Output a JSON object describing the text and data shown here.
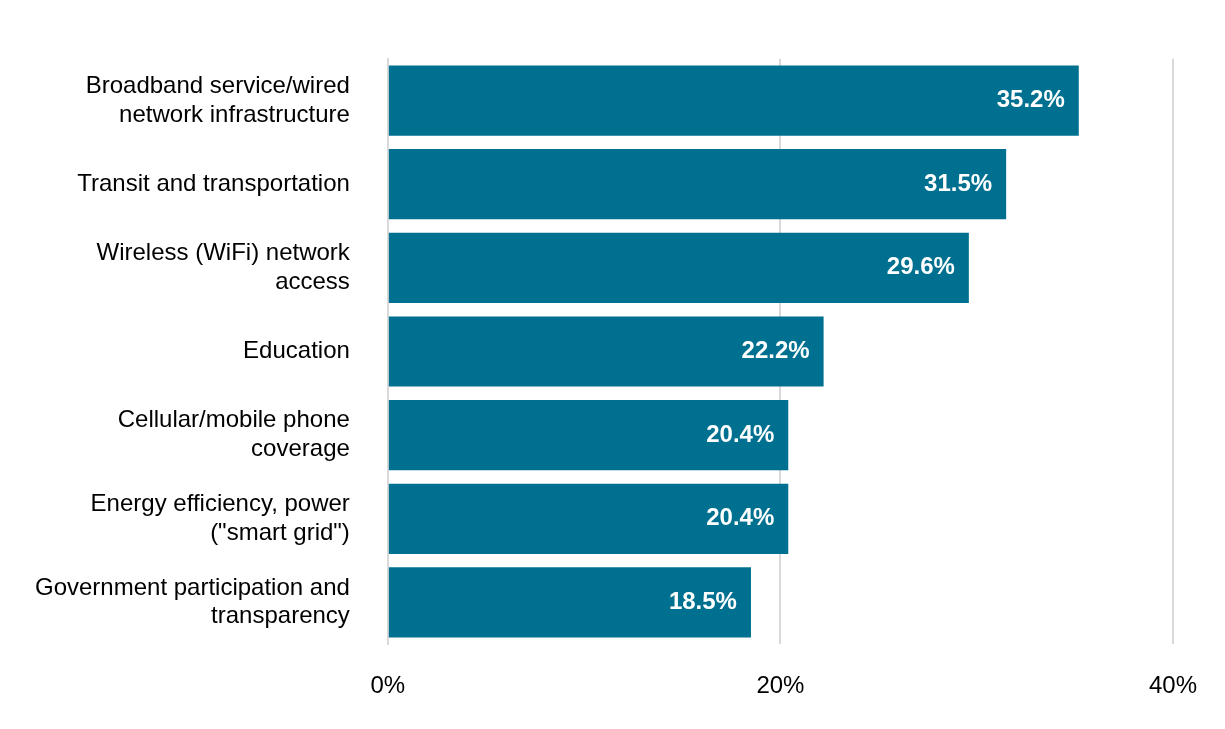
{
  "chart_data": {
    "type": "bar",
    "orientation": "horizontal",
    "categories": [
      "Broadband service/wired network infrastructure",
      "Transit and transportation",
      "Wireless (WiFi) network access",
      "Education",
      "Cellular/mobile phone coverage",
      "Energy efficiency, power (\"smart grid\")",
      "Government participation and transparency"
    ],
    "values": [
      35.2,
      31.5,
      29.6,
      22.2,
      20.4,
      20.4,
      18.5
    ],
    "value_labels": [
      "35.2%",
      "31.5%",
      "29.6%",
      "22.2%",
      "20.4%",
      "20.4%",
      "18.5%"
    ],
    "color": "#007090",
    "xlim": [
      0,
      40
    ],
    "xticks": [
      {
        "value": 0,
        "label": "0%"
      },
      {
        "value": 20,
        "label": "20%"
      },
      {
        "value": 40,
        "label": "40%"
      }
    ],
    "grid": "x",
    "legend": false
  }
}
